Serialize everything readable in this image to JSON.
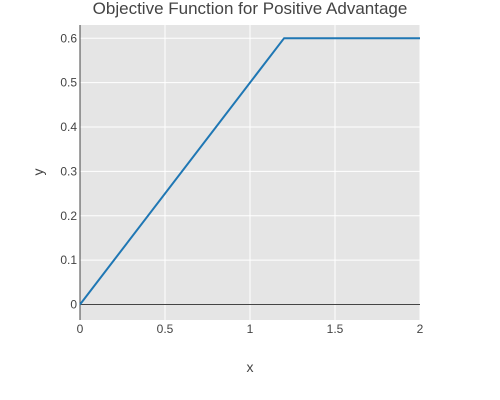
{
  "chart_data": {
    "type": "line",
    "title": "Objective Function for Positive Advantage",
    "xlabel": "x",
    "ylabel": "y",
    "xlim": [
      0,
      2
    ],
    "ylim": [
      -0.035,
      0.63
    ],
    "x_ticks": [
      0,
      0.5,
      1,
      1.5,
      2
    ],
    "x_tick_labels": [
      "0",
      "0.5",
      "1",
      "1.5",
      "2"
    ],
    "y_ticks": [
      0,
      0.1,
      0.2,
      0.3,
      0.4,
      0.5,
      0.6
    ],
    "y_tick_labels": [
      "0",
      "0.1",
      "0.2",
      "0.3",
      "0.4",
      "0.5",
      "0.6"
    ],
    "grid": true,
    "legend": "none",
    "series": [
      {
        "x": [
          0,
          1.2,
          2
        ],
        "y": [
          0,
          0.6,
          0.6
        ],
        "color": "#1f77b4"
      }
    ],
    "colors": {
      "plot_background": "#e5e5e5",
      "grid": "#ffffff",
      "zero_line": "#444444"
    }
  }
}
